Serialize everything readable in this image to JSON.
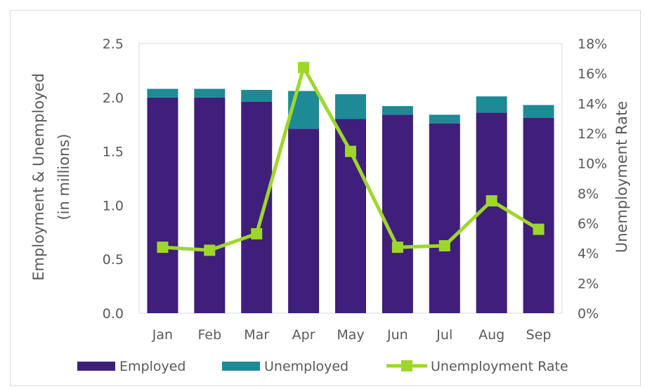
{
  "chart_data": {
    "type": "bar",
    "stacked": true,
    "categories": [
      "Jan",
      "Feb",
      "Mar",
      "Apr",
      "May",
      "Jun",
      "Jul",
      "Aug",
      "Sep"
    ],
    "series": [
      {
        "name": "Employed",
        "kind": "bar",
        "axis": "left",
        "color": "#3f1f7a",
        "values": [
          2.0,
          2.0,
          1.96,
          1.71,
          1.8,
          1.84,
          1.76,
          1.86,
          1.81
        ]
      },
      {
        "name": "Unemployed",
        "kind": "bar",
        "axis": "left",
        "color": "#1e8a95",
        "values": [
          0.08,
          0.08,
          0.11,
          0.35,
          0.23,
          0.08,
          0.08,
          0.15,
          0.12
        ]
      },
      {
        "name": "Unemployment Rate",
        "kind": "line",
        "axis": "right",
        "color": "#9ed72c",
        "values": [
          4.4,
          4.2,
          5.3,
          16.4,
          10.8,
          4.4,
          4.5,
          7.5,
          5.6
        ]
      }
    ],
    "ylabel_left": [
      "Employment & Unemployed",
      "(in millions)"
    ],
    "ylabel_right": "Unemployment Rate",
    "ylim_left": [
      0,
      2.5
    ],
    "ylim_right": [
      0,
      18
    ],
    "yticks_left": [
      "0.0",
      "0.5",
      "1.0",
      "1.5",
      "2.0",
      "2.5"
    ],
    "yticks_right": [
      "0%",
      "2%",
      "4%",
      "6%",
      "8%",
      "10%",
      "12%",
      "14%",
      "16%",
      "18%"
    ],
    "grid": false,
    "legend_position": "bottom",
    "legend": [
      "Employed",
      "Unemployed",
      "Unemployment Rate"
    ]
  }
}
